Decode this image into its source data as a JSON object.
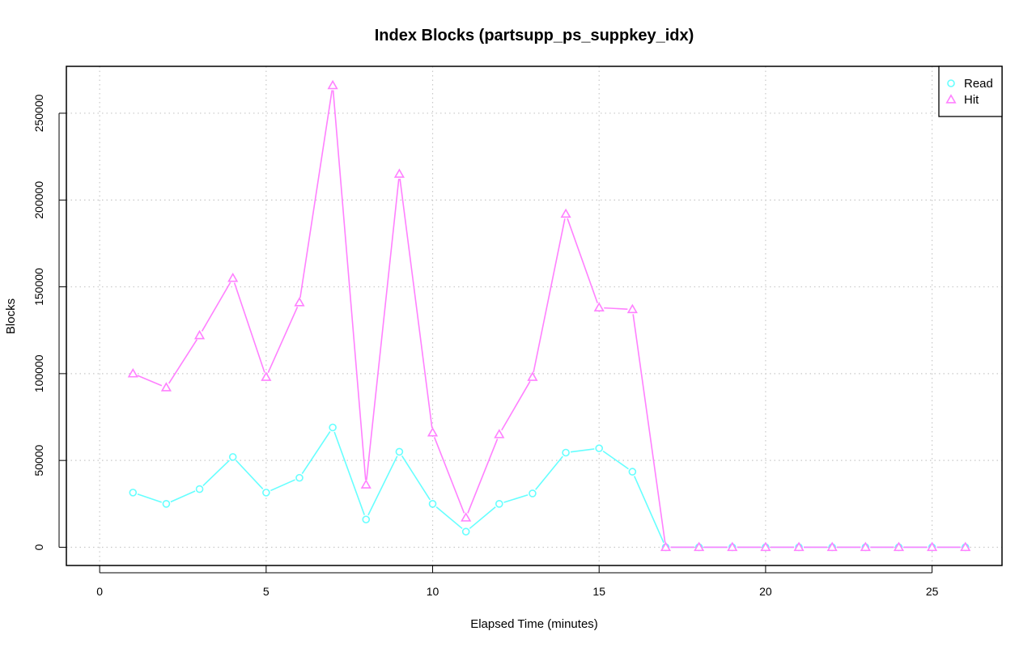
{
  "chart_data": {
    "type": "line",
    "title": "Index Blocks (partsupp_ps_suppkey_idx)",
    "xlabel": "Elapsed Time (minutes)",
    "ylabel": "Blocks",
    "xlim": [
      -1,
      27.1
    ],
    "ylim": [
      -10500,
      277000
    ],
    "x_ticks": [
      0,
      5,
      10,
      15,
      20,
      25
    ],
    "y_ticks": [
      0,
      50000,
      100000,
      150000,
      200000,
      250000
    ],
    "x_tick_labels": [
      "0",
      "5",
      "10",
      "15",
      "20",
      "25"
    ],
    "y_tick_labels": [
      "0",
      "50000",
      "100000",
      "150000",
      "200000",
      "250000"
    ],
    "grid": true,
    "legend_position": "top-right",
    "x": [
      1,
      2,
      3,
      4,
      5,
      6,
      7,
      8,
      9,
      10,
      11,
      12,
      13,
      14,
      15,
      16,
      17,
      18,
      19,
      20,
      21,
      22,
      23,
      24,
      25,
      26
    ],
    "series": [
      {
        "name": "Read",
        "color": "#66ffff",
        "marker": "circle",
        "values": [
          31500,
          25000,
          33500,
          52000,
          31500,
          40000,
          69000,
          16000,
          55000,
          25000,
          9000,
          25000,
          31000,
          54500,
          57000,
          43500,
          0,
          0,
          0,
          0,
          0,
          0,
          0,
          0,
          0,
          0
        ]
      },
      {
        "name": "Hit",
        "color": "#ff80ff",
        "marker": "triangle",
        "values": [
          100000,
          92000,
          122000,
          155000,
          98000,
          141000,
          266000,
          36000,
          215000,
          66000,
          17000,
          65000,
          98000,
          192000,
          138000,
          137000,
          0,
          0,
          0,
          0,
          0,
          0,
          0,
          0,
          0,
          0
        ]
      }
    ]
  }
}
